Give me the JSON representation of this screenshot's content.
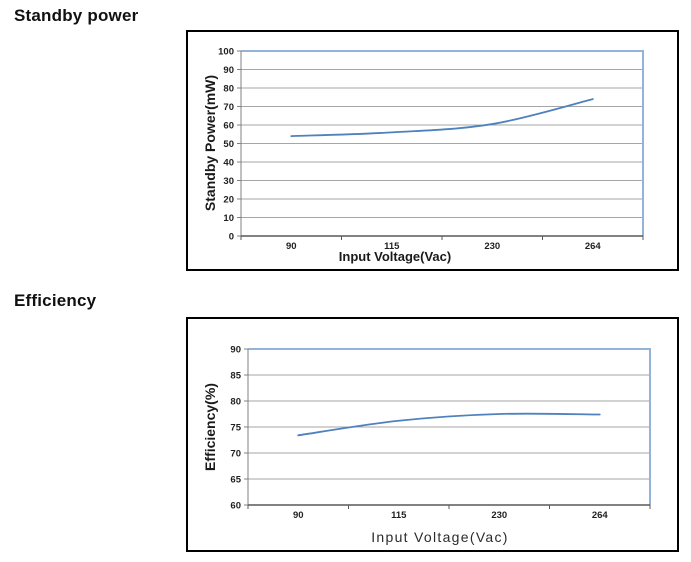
{
  "headings": {
    "standby": "Standby power",
    "efficiency": "Efficiency"
  },
  "chart_data": [
    {
      "type": "line",
      "categories": [
        "90",
        "115",
        "230",
        "264"
      ],
      "series": [
        {
          "name": "Standby Power",
          "values": [
            54,
            56,
            60.5,
            74
          ]
        }
      ],
      "title": "",
      "xlabel": "Input Voltage(Vac)",
      "ylabel": "Standby Power(mW)",
      "ylim": [
        0,
        100
      ],
      "ytick_step": 10,
      "grid": true,
      "legend": "none",
      "smooth": true,
      "colors": {
        "line": "#4F81BD",
        "plot_border": "#95B3D7",
        "grid": "#A6A6A6",
        "axis": "#808080",
        "axis_x": "#595959"
      }
    },
    {
      "type": "line",
      "categories": [
        "90",
        "115",
        "230",
        "264"
      ],
      "series": [
        {
          "name": "Efficiency",
          "values": [
            73.4,
            76.2,
            77.5,
            77.4
          ]
        }
      ],
      "title": "",
      "xlabel": "Input Voltage(Vac)",
      "ylabel": "Efficiency(%)",
      "ylim": [
        60,
        90
      ],
      "ytick_step": 5,
      "grid": true,
      "legend": "none",
      "smooth": true,
      "colors": {
        "line": "#4F81BD",
        "plot_border": "#95B3D7",
        "grid": "#A6A6A6",
        "axis": "#808080",
        "axis_x": "#595959"
      }
    }
  ]
}
